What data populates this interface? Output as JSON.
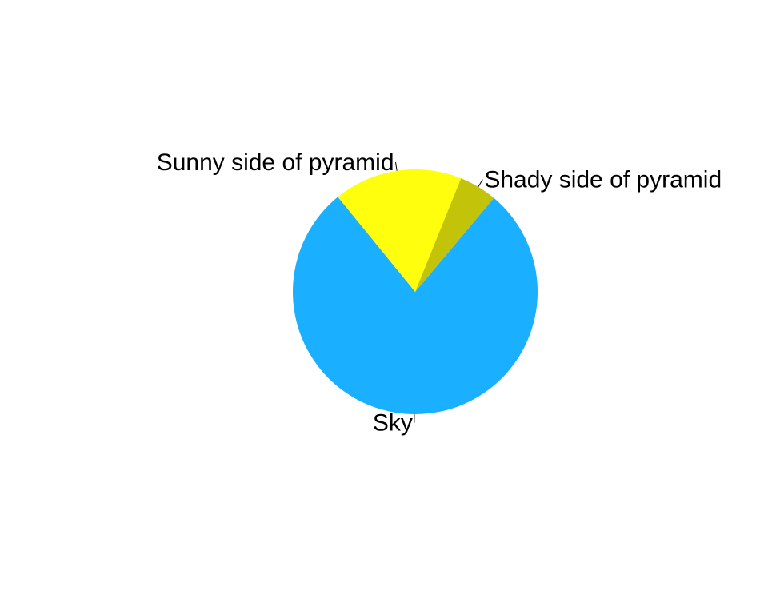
{
  "chart_data": {
    "type": "pie",
    "labels": [
      "Sky",
      "Sunny side of pyramid",
      "Shady side of pyramid"
    ],
    "values": [
      0.78,
      0.17,
      0.05
    ],
    "colors": [
      "#1AAFFF",
      "#FFFF0D",
      "#C3C40A"
    ],
    "start_angle_deg": 40,
    "direction": "clockwise",
    "title": "",
    "legend": "none"
  }
}
